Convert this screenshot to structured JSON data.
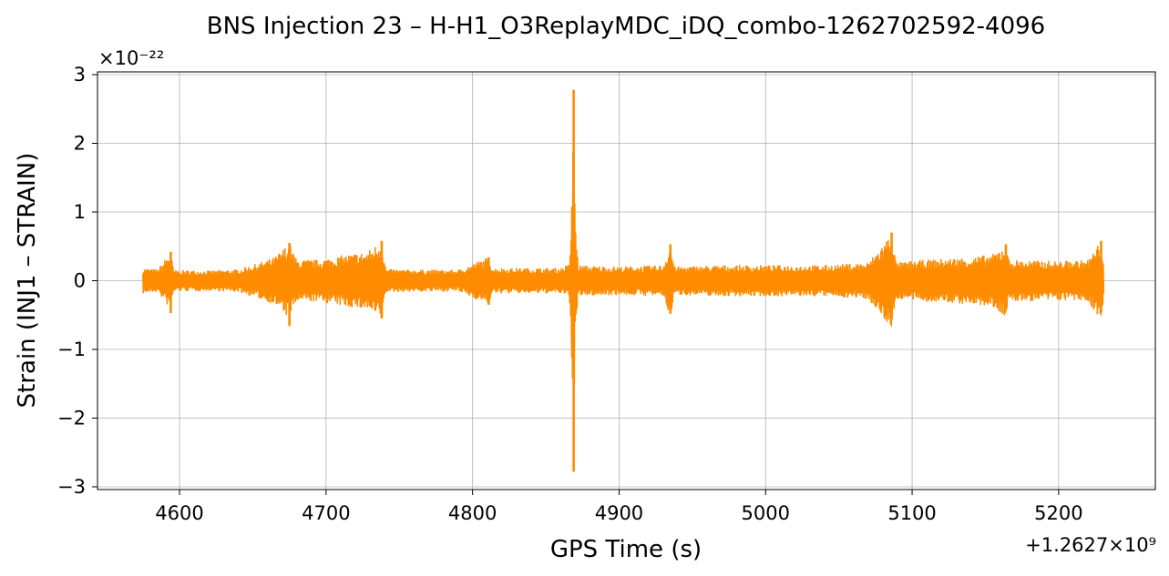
{
  "chart_data": {
    "type": "line",
    "title": "BNS Injection 23 – H-H1_O3ReplayMDC_iDQ_combo-1262702592-4096",
    "xlabel": "GPS Time (s)",
    "ylabel": "Strain (INJ1 – STRAIN)",
    "x_offset_label": "+1.2627×10⁹",
    "y_scale_label": "×10⁻²²",
    "xlim": [
      4544,
      5266
    ],
    "ylim": [
      -3.04,
      3.04
    ],
    "x_ticks": [
      4600,
      4700,
      4800,
      4900,
      5000,
      5100,
      5200
    ],
    "x_tick_labels": [
      "4600",
      "4700",
      "4800",
      "4900",
      "5000",
      "5100",
      "5200"
    ],
    "y_ticks": [
      -3,
      -2,
      -1,
      0,
      1,
      2,
      3
    ],
    "y_tick_labels": [
      "−3",
      "−2",
      "−1",
      "0",
      "1",
      "2",
      "3"
    ],
    "grid": true,
    "line_color": "#ff8c00",
    "series": [
      {
        "x_range": [
          4575,
          5231
        ],
        "envelope": [
          [
            4575,
            0.18
          ],
          [
            4585,
            0.16
          ],
          [
            4594,
            0.42
          ],
          [
            4596,
            0.15
          ],
          [
            4620,
            0.14
          ],
          [
            4640,
            0.16
          ],
          [
            4655,
            0.26
          ],
          [
            4665,
            0.34
          ],
          [
            4675,
            0.55
          ],
          [
            4680,
            0.3
          ],
          [
            4695,
            0.3
          ],
          [
            4705,
            0.34
          ],
          [
            4715,
            0.38
          ],
          [
            4728,
            0.42
          ],
          [
            4738,
            0.58
          ],
          [
            4741,
            0.16
          ],
          [
            4790,
            0.15
          ],
          [
            4811,
            0.34
          ],
          [
            4814,
            0.18
          ],
          [
            4860,
            0.18
          ],
          [
            4866,
            0.24
          ],
          [
            4868,
            1.08
          ],
          [
            4869,
            2.78
          ],
          [
            4870,
            1.0
          ],
          [
            4872,
            0.22
          ],
          [
            4900,
            0.2
          ],
          [
            4930,
            0.22
          ],
          [
            4935,
            0.53
          ],
          [
            4938,
            0.2
          ],
          [
            4970,
            0.22
          ],
          [
            5040,
            0.22
          ],
          [
            5070,
            0.26
          ],
          [
            5086,
            0.7
          ],
          [
            5089,
            0.26
          ],
          [
            5110,
            0.3
          ],
          [
            5140,
            0.34
          ],
          [
            5155,
            0.38
          ],
          [
            5164,
            0.53
          ],
          [
            5166,
            0.3
          ],
          [
            5200,
            0.28
          ],
          [
            5220,
            0.3
          ],
          [
            5229,
            0.58
          ],
          [
            5231,
            0.26
          ]
        ],
        "negative_peaks": [
          [
            4594,
            -0.47
          ],
          [
            4675,
            -0.66
          ],
          [
            4738,
            -0.55
          ],
          [
            4811,
            -0.35
          ],
          [
            4868,
            -1.12
          ],
          [
            4869,
            -2.78
          ],
          [
            4935,
            -0.48
          ],
          [
            5086,
            -0.57
          ],
          [
            5164,
            -0.42
          ],
          [
            5229,
            -0.46
          ]
        ]
      }
    ]
  }
}
